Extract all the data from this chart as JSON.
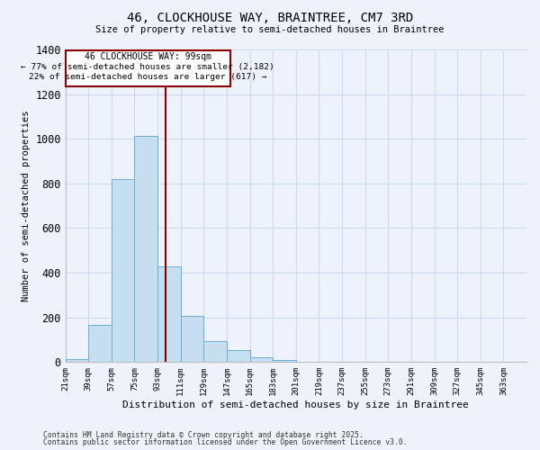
{
  "title1": "46, CLOCKHOUSE WAY, BRAINTREE, CM7 3RD",
  "title2": "Size of property relative to semi-detached houses in Braintree",
  "xlabel": "Distribution of semi-detached houses by size in Braintree",
  "ylabel": "Number of semi-detached properties",
  "footnote1": "Contains HM Land Registry data © Crown copyright and database right 2025.",
  "footnote2": "Contains public sector information licensed under the Open Government Licence v3.0.",
  "annotation_title": "46 CLOCKHOUSE WAY: 99sqm",
  "annotation_line1": "← 77% of semi-detached houses are smaller (2,182)",
  "annotation_line2": "22% of semi-detached houses are larger (617) →",
  "property_size": 99,
  "bin_edges": [
    21,
    39,
    57,
    75,
    93,
    111,
    129,
    147,
    165,
    183,
    201,
    219,
    237,
    255,
    273,
    291,
    309,
    327,
    345,
    363,
    381
  ],
  "bar_heights": [
    12,
    168,
    820,
    1012,
    430,
    207,
    93,
    55,
    20,
    8,
    0,
    0,
    0,
    0,
    0,
    0,
    0,
    0,
    0,
    0
  ],
  "bar_color": "#c5dff0",
  "bar_edge_color": "#6aaed6",
  "vline_color": "#8b0000",
  "vline_x": 99,
  "annotation_box_color": "#8b0000",
  "grid_color": "#ccdcee",
  "background_color": "#eef2fb",
  "ylim": [
    0,
    1400
  ],
  "yticks": [
    0,
    200,
    400,
    600,
    800,
    1000,
    1200,
    1400
  ]
}
